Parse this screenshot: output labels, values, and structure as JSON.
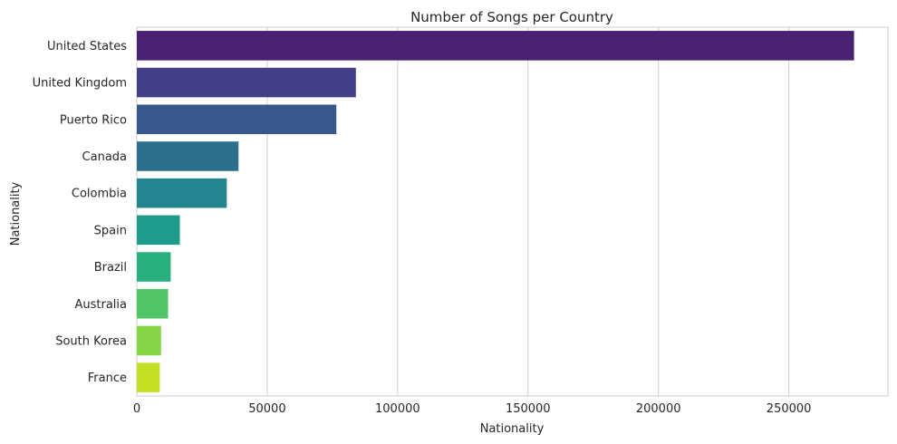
{
  "chart_data": {
    "type": "bar",
    "orientation": "horizontal",
    "title": "Number of Songs per Country",
    "xlabel": "Nationality",
    "ylabel": "Nationality",
    "categories": [
      "United States",
      "United Kingdom",
      "Puerto Rico",
      "Canada",
      "Colombia",
      "Spain",
      "Brazil",
      "Australia",
      "South Korea",
      "France"
    ],
    "values": [
      275000,
      84000,
      76500,
      39000,
      34500,
      16500,
      13000,
      12000,
      9300,
      8800
    ],
    "xlim": [
      0,
      288000
    ],
    "xticks": [
      0,
      50000,
      100000,
      150000,
      200000,
      250000
    ],
    "xtick_labels": [
      "0",
      "50000",
      "100000",
      "150000",
      "200000",
      "250000"
    ],
    "grid": "vertical",
    "palette": "viridis",
    "colors": [
      "#482173",
      "#433e85",
      "#38588c",
      "#2d708e",
      "#25858e",
      "#1e9b8a",
      "#2ab07f",
      "#52c569",
      "#86d549",
      "#c2df23"
    ]
  }
}
